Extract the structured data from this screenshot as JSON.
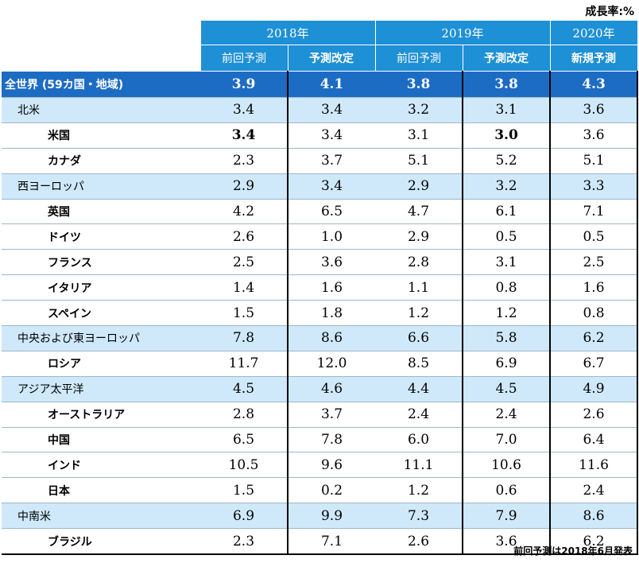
{
  "unit_label": "成長率:%",
  "footnote": "前回予測は2018年6月発表",
  "headers": {
    "years": [
      "2018年",
      "2019年",
      "2020年"
    ],
    "subs": [
      "前回予測",
      "予測改定",
      "前回予測",
      "予測改定",
      "新規予測"
    ]
  },
  "rows": [
    {
      "name": "全世界 (59カ国・地域)",
      "type": "world",
      "values": [
        "3.9",
        "4.1",
        "3.8",
        "3.8",
        "4.3"
      ]
    },
    {
      "name": "北米",
      "type": "region",
      "values": [
        "3.4",
        "3.4",
        "3.2",
        "3.1",
        "3.6"
      ]
    },
    {
      "name": "米国",
      "type": "country",
      "values": [
        "3.4",
        "3.4",
        "3.1",
        "3.0",
        "3.6"
      ],
      "bold_cells": [
        0,
        3
      ]
    },
    {
      "name": "カナダ",
      "type": "country",
      "values": [
        "2.3",
        "3.7",
        "5.1",
        "5.2",
        "5.1"
      ]
    },
    {
      "name": "西ヨーロッパ",
      "type": "region",
      "values": [
        "2.9",
        "3.4",
        "2.9",
        "3.2",
        "3.3"
      ]
    },
    {
      "name": "英国",
      "type": "country",
      "values": [
        "4.2",
        "6.5",
        "4.7",
        "6.1",
        "7.1"
      ]
    },
    {
      "name": "ドイツ",
      "type": "country",
      "values": [
        "2.6",
        "1.0",
        "2.9",
        "0.5",
        "0.5"
      ]
    },
    {
      "name": "フランス",
      "type": "country",
      "values": [
        "2.5",
        "3.6",
        "2.8",
        "3.1",
        "2.5"
      ]
    },
    {
      "name": "イタリア",
      "type": "country",
      "values": [
        "1.4",
        "1.6",
        "1.1",
        "0.8",
        "1.6"
      ]
    },
    {
      "name": "スペイン",
      "type": "country",
      "values": [
        "1.5",
        "1.8",
        "1.2",
        "1.2",
        "0.8"
      ]
    },
    {
      "name": "中央および東ヨーロッパ",
      "type": "region",
      "values": [
        "7.8",
        "8.6",
        "6.6",
        "5.8",
        "6.2"
      ]
    },
    {
      "name": "ロシア",
      "type": "country",
      "values": [
        "11.7",
        "12.0",
        "8.5",
        "6.9",
        "6.7"
      ]
    },
    {
      "name": "アジア太平洋",
      "type": "region",
      "values": [
        "4.5",
        "4.6",
        "4.4",
        "4.5",
        "4.9"
      ]
    },
    {
      "name": "オーストラリア",
      "type": "country",
      "values": [
        "2.8",
        "3.7",
        "2.4",
        "2.4",
        "2.6"
      ]
    },
    {
      "name": "中国",
      "type": "country",
      "values": [
        "6.5",
        "7.8",
        "6.0",
        "7.0",
        "6.4"
      ]
    },
    {
      "name": "インド",
      "type": "country",
      "values": [
        "10.5",
        "9.6",
        "11.1",
        "10.6",
        "11.6"
      ]
    },
    {
      "name": "日本",
      "type": "country",
      "values": [
        "1.5",
        "0.2",
        "1.2",
        "0.6",
        "2.4"
      ]
    },
    {
      "name": "中南米",
      "type": "region",
      "values": [
        "6.9",
        "9.9",
        "7.3",
        "7.9",
        "8.6"
      ]
    },
    {
      "name": "ブラジル",
      "type": "country",
      "values": [
        "2.3",
        "7.1",
        "2.6",
        "3.6",
        "6.2"
      ]
    }
  ],
  "colors": {
    "header_bg": "#1e90d6",
    "world_bg": "#1d6cc4",
    "region_bg": "#cfe9fb"
  }
}
